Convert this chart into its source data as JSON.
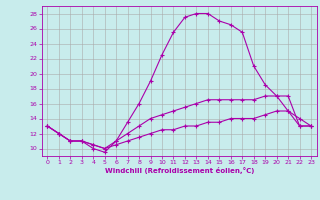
{
  "xlabel": "Windchill (Refroidissement éolien,°C)",
  "background_color": "#c8ecec",
  "line_color": "#aa00aa",
  "grid_color": "#aaaaaa",
  "xlim": [
    -0.5,
    23.5
  ],
  "ylim": [
    9,
    29
  ],
  "yticks": [
    10,
    12,
    14,
    16,
    18,
    20,
    22,
    24,
    26,
    28
  ],
  "xticks": [
    0,
    1,
    2,
    3,
    4,
    5,
    6,
    7,
    8,
    9,
    10,
    11,
    12,
    13,
    14,
    15,
    16,
    17,
    18,
    19,
    20,
    21,
    22,
    23
  ],
  "series": [
    {
      "x": [
        0,
        1,
        2,
        3,
        4,
        5,
        6,
        7,
        8,
        9,
        10,
        11,
        12,
        13,
        14,
        15,
        16,
        17,
        18,
        19,
        20,
        21,
        22,
        23
      ],
      "y": [
        13,
        12,
        11,
        11,
        10,
        9.5,
        11,
        13.5,
        16,
        19,
        22.5,
        25.5,
        27.5,
        28,
        28,
        27,
        26.5,
        25.5,
        21,
        18.5,
        17,
        15,
        14,
        13
      ]
    },
    {
      "x": [
        0,
        1,
        2,
        3,
        4,
        5,
        6,
        7,
        8,
        9,
        10,
        11,
        12,
        13,
        14,
        15,
        16,
        17,
        18,
        19,
        20,
        21,
        22,
        23
      ],
      "y": [
        13,
        12,
        11,
        11,
        10.5,
        10,
        11,
        12,
        13,
        14,
        14.5,
        15,
        15.5,
        16,
        16.5,
        16.5,
        16.5,
        16.5,
        16.5,
        17,
        17,
        17,
        13,
        13
      ]
    },
    {
      "x": [
        0,
        1,
        2,
        3,
        4,
        5,
        6,
        7,
        8,
        9,
        10,
        11,
        12,
        13,
        14,
        15,
        16,
        17,
        18,
        19,
        20,
        21,
        22,
        23
      ],
      "y": [
        13,
        12,
        11,
        11,
        10.5,
        10,
        10.5,
        11,
        11.5,
        12,
        12.5,
        12.5,
        13,
        13,
        13.5,
        13.5,
        14,
        14,
        14,
        14.5,
        15,
        15,
        13,
        13
      ]
    }
  ]
}
